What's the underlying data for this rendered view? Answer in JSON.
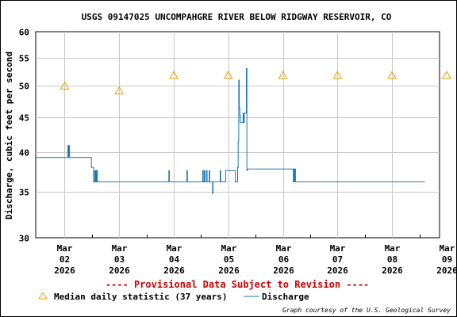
{
  "chart_data": {
    "type": "line",
    "title": "USGS 09147025 UNCOMPAHGRE RIVER BELOW RIDGWAY RESERVOIR, CO",
    "ylabel": "Discharge, cubic feet per second",
    "y_scale": "log",
    "ylim": [
      30,
      60
    ],
    "y_ticks": [
      30,
      35,
      40,
      45,
      50,
      55,
      60
    ],
    "x_ticks": [
      {
        "month": "Mar",
        "day": "02",
        "year": "2026"
      },
      {
        "month": "Mar",
        "day": "03",
        "year": "2026"
      },
      {
        "month": "Mar",
        "day": "04",
        "year": "2026"
      },
      {
        "month": "Mar",
        "day": "05",
        "year": "2026"
      },
      {
        "month": "Mar",
        "day": "06",
        "year": "2026"
      },
      {
        "month": "Mar",
        "day": "07",
        "year": "2026"
      },
      {
        "month": "Mar",
        "day": "08",
        "year": "2026"
      },
      {
        "month": "Mar",
        "day": "09",
        "year": "2026"
      }
    ],
    "x_range_days": [
      1.97,
      9.37
    ],
    "grid": true,
    "series": [
      {
        "name": "Discharge",
        "color": "#1f77b4",
        "style": "step-line",
        "points": [
          [
            1.97,
            39.3
          ],
          [
            2.55,
            39.3
          ],
          [
            2.56,
            40.9
          ],
          [
            2.57,
            39.3
          ],
          [
            2.58,
            40.9
          ],
          [
            2.59,
            39.3
          ],
          [
            2.98,
            39.3
          ],
          [
            2.99,
            38.0
          ],
          [
            3.02,
            38.0
          ],
          [
            3.03,
            36.2
          ],
          [
            3.05,
            37.6
          ],
          [
            3.06,
            36.2
          ],
          [
            3.07,
            37.6
          ],
          [
            3.08,
            36.2
          ],
          [
            3.09,
            37.6
          ],
          [
            3.1,
            36.2
          ],
          [
            4.4,
            36.2
          ],
          [
            4.41,
            37.6
          ],
          [
            4.42,
            36.2
          ],
          [
            4.73,
            36.2
          ],
          [
            4.74,
            37.6
          ],
          [
            4.75,
            36.2
          ],
          [
            5.02,
            36.2
          ],
          [
            5.03,
            37.6
          ],
          [
            5.04,
            36.2
          ],
          [
            5.06,
            37.6
          ],
          [
            5.07,
            36.2
          ],
          [
            5.1,
            37.6
          ],
          [
            5.11,
            36.2
          ],
          [
            5.15,
            37.6
          ],
          [
            5.16,
            36.2
          ],
          [
            5.2,
            36.2
          ],
          [
            5.21,
            34.8
          ],
          [
            5.22,
            36.2
          ],
          [
            5.34,
            36.2
          ],
          [
            5.35,
            37.6
          ],
          [
            5.36,
            36.2
          ],
          [
            5.42,
            36.2
          ],
          [
            5.45,
            37.6
          ],
          [
            5.62,
            37.6
          ],
          [
            5.63,
            36.2
          ],
          [
            5.66,
            36.2
          ],
          [
            5.67,
            38.0
          ],
          [
            5.68,
            41.5
          ],
          [
            5.69,
            51.0
          ],
          [
            5.7,
            46.5
          ],
          [
            5.71,
            45.2
          ],
          [
            5.72,
            44.2
          ],
          [
            5.76,
            44.2
          ],
          [
            5.77,
            45.6
          ],
          [
            5.78,
            44.2
          ],
          [
            5.79,
            45.6
          ],
          [
            5.82,
            45.6
          ],
          [
            5.83,
            53.0
          ],
          [
            5.84,
            37.6
          ],
          [
            5.85,
            37.8
          ],
          [
            6.68,
            37.8
          ],
          [
            6.69,
            36.2
          ],
          [
            6.7,
            37.8
          ],
          [
            6.71,
            36.2
          ],
          [
            6.72,
            37.8
          ],
          [
            6.73,
            36.2
          ],
          [
            9.1,
            36.2
          ]
        ]
      }
    ],
    "markers": {
      "name": "Median daily statistic (37 years)",
      "shape": "triangle",
      "color": "#e8a000",
      "points": [
        [
          2.5,
          50.0
        ],
        [
          3.5,
          49.2
        ],
        [
          4.5,
          51.8
        ],
        [
          5.5,
          51.8
        ],
        [
          6.5,
          51.8
        ],
        [
          7.5,
          51.8
        ],
        [
          8.5,
          51.8
        ],
        [
          9.5,
          51.8
        ]
      ]
    },
    "provisional_note": "---- Provisional Data Subject to Revision ----",
    "credit": "Graph courtesy of the U.S. Geological Survey"
  }
}
